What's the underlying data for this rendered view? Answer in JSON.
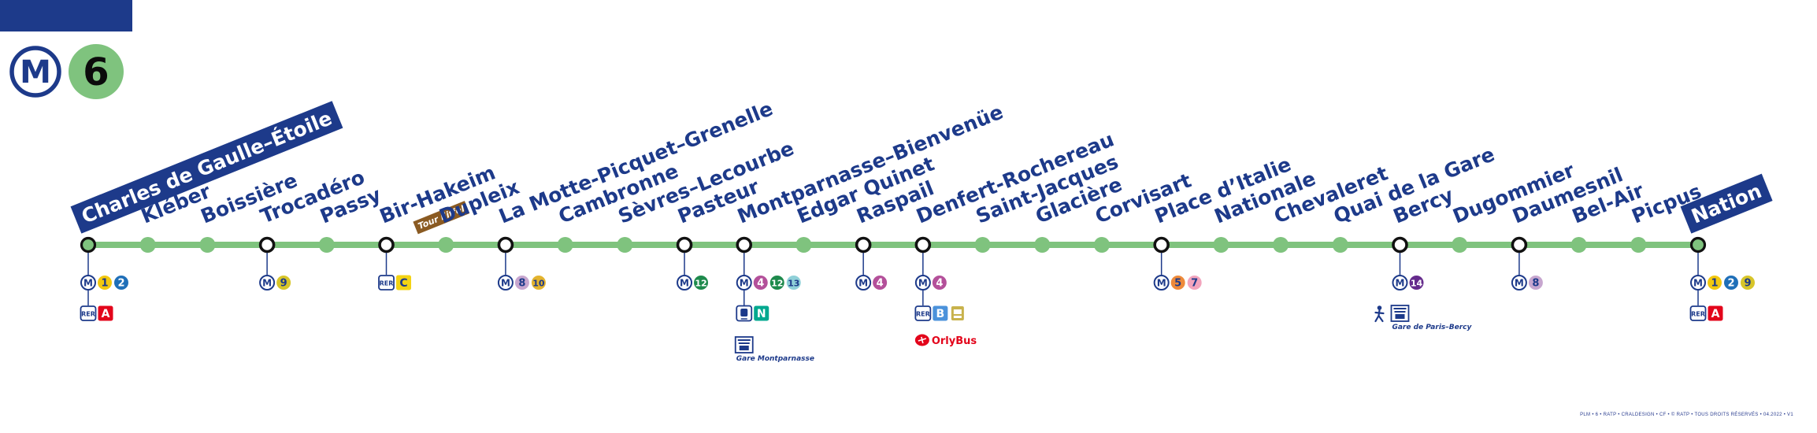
{
  "line": {
    "mode_symbol": "M",
    "number": "6",
    "color": "#7fc37e",
    "brand_color": "#1d3a8a"
  },
  "stations": [
    {
      "name": "Charles de Gaulle–Étoile",
      "terminus": true,
      "icon_rows": [
        [
          "metro-icon",
          "1",
          "2"
        ],
        [
          "rer-icon",
          "A"
        ]
      ]
    },
    {
      "name": "Kléber",
      "icon_rows": []
    },
    {
      "name": "Boissière",
      "icon_rows": []
    },
    {
      "name": "Trocadéro",
      "icon_rows": [
        [
          "metro-icon",
          "9"
        ]
      ]
    },
    {
      "name": "Passy",
      "icon_rows": []
    },
    {
      "name": "Bir-Hakeim",
      "tag": "Tour Eiffel",
      "icon_rows": [
        [
          "rer-icon",
          "C"
        ]
      ]
    },
    {
      "name": "Dupleix",
      "icon_rows": []
    },
    {
      "name": "La Motte-Picquet–Grenelle",
      "icon_rows": [
        [
          "metro-icon",
          "8",
          "10"
        ]
      ]
    },
    {
      "name": "Cambronne",
      "icon_rows": []
    },
    {
      "name": "Sèvres–Lecourbe",
      "icon_rows": []
    },
    {
      "name": "Pasteur",
      "icon_rows": [
        [
          "metro-icon",
          "12"
        ]
      ]
    },
    {
      "name": "Montparnasse–Bienvenüe",
      "icon_rows": [
        [
          "metro-icon",
          "4",
          "12",
          "13"
        ],
        [
          "train-icon",
          "N"
        ]
      ],
      "station_icon": "railway-station-icon",
      "station_label": "Gare Montparnasse"
    },
    {
      "name": "Edgar Quinet",
      "icon_rows": []
    },
    {
      "name": "Raspail",
      "icon_rows": [
        [
          "metro-icon",
          "4"
        ]
      ]
    },
    {
      "name": "Denfert-Rochereau",
      "icon_rows": [
        [
          "metro-icon",
          "4"
        ],
        [
          "rer-icon",
          "B",
          "bus-icon"
        ]
      ],
      "extra_label": "OrlyBus"
    },
    {
      "name": "Saint-Jacques",
      "icon_rows": []
    },
    {
      "name": "Glacière",
      "icon_rows": []
    },
    {
      "name": "Corvisart",
      "icon_rows": []
    },
    {
      "name": "Place d’Italie",
      "icon_rows": [
        [
          "metro-icon",
          "5",
          "7"
        ]
      ]
    },
    {
      "name": "Nationale",
      "icon_rows": []
    },
    {
      "name": "Chevaleret",
      "icon_rows": []
    },
    {
      "name": "Quai de la Gare",
      "icon_rows": []
    },
    {
      "name": "Bercy",
      "icon_rows": [
        [
          "metro-icon",
          "14"
        ]
      ],
      "station_icon": "railway-station-icon",
      "station_label": "Gare de Paris–Bercy"
    },
    {
      "name": "Dugommier",
      "icon_rows": []
    },
    {
      "name": "Daumesnil",
      "icon_rows": [
        [
          "metro-icon",
          "8"
        ]
      ]
    },
    {
      "name": "Bel-Air",
      "icon_rows": []
    },
    {
      "name": "Picpus",
      "icon_rows": []
    },
    {
      "name": "Nation",
      "terminus": true,
      "icon_rows": [
        [
          "metro-icon",
          "1",
          "2",
          "9"
        ],
        [
          "rer-icon",
          "A"
        ]
      ]
    }
  ],
  "badge_colors": {
    "metro": {
      "1": {
        "bg": "#f2c80f",
        "fg": "#1d3a8a"
      },
      "2": {
        "bg": "#1f6fb8",
        "fg": "#ffffff"
      },
      "4": {
        "bg": "#b4509a",
        "fg": "#ffffff"
      },
      "5": {
        "bg": "#ee8a3a",
        "fg": "#1d3a8a"
      },
      "7": {
        "bg": "#f2a4bd",
        "fg": "#1d3a8a"
      },
      "8": {
        "bg": "#c7a6cf",
        "fg": "#1d3a8a"
      },
      "9": {
        "bg": "#d7c52a",
        "fg": "#1d3a8a"
      },
      "10": {
        "bg": "#e3b32e",
        "fg": "#1d3a8a"
      },
      "12": {
        "bg": "#1e8a4c",
        "fg": "#ffffff"
      },
      "13": {
        "bg": "#8fd0d8",
        "fg": "#1d3a8a"
      },
      "14": {
        "bg": "#652b8c",
        "fg": "#ffffff"
      }
    },
    "rer": {
      "A": {
        "bg": "#e3051b",
        "fg": "#ffffff"
      },
      "B": {
        "bg": "#4b92db",
        "fg": "#ffffff"
      },
      "C": {
        "bg": "#f3d314",
        "fg": "#1d3a8a"
      }
    },
    "train": {
      "N": {
        "bg": "#00a88f",
        "fg": "#ffffff"
      }
    }
  },
  "mode_labels": {
    "rer": "RER"
  },
  "footer": {
    "copyright": "PLM • 6 • RATP • CRALDESIGN • CF • © RATP • TOUS DROITS RÉSERVÉS • 04.2022 • V1"
  }
}
